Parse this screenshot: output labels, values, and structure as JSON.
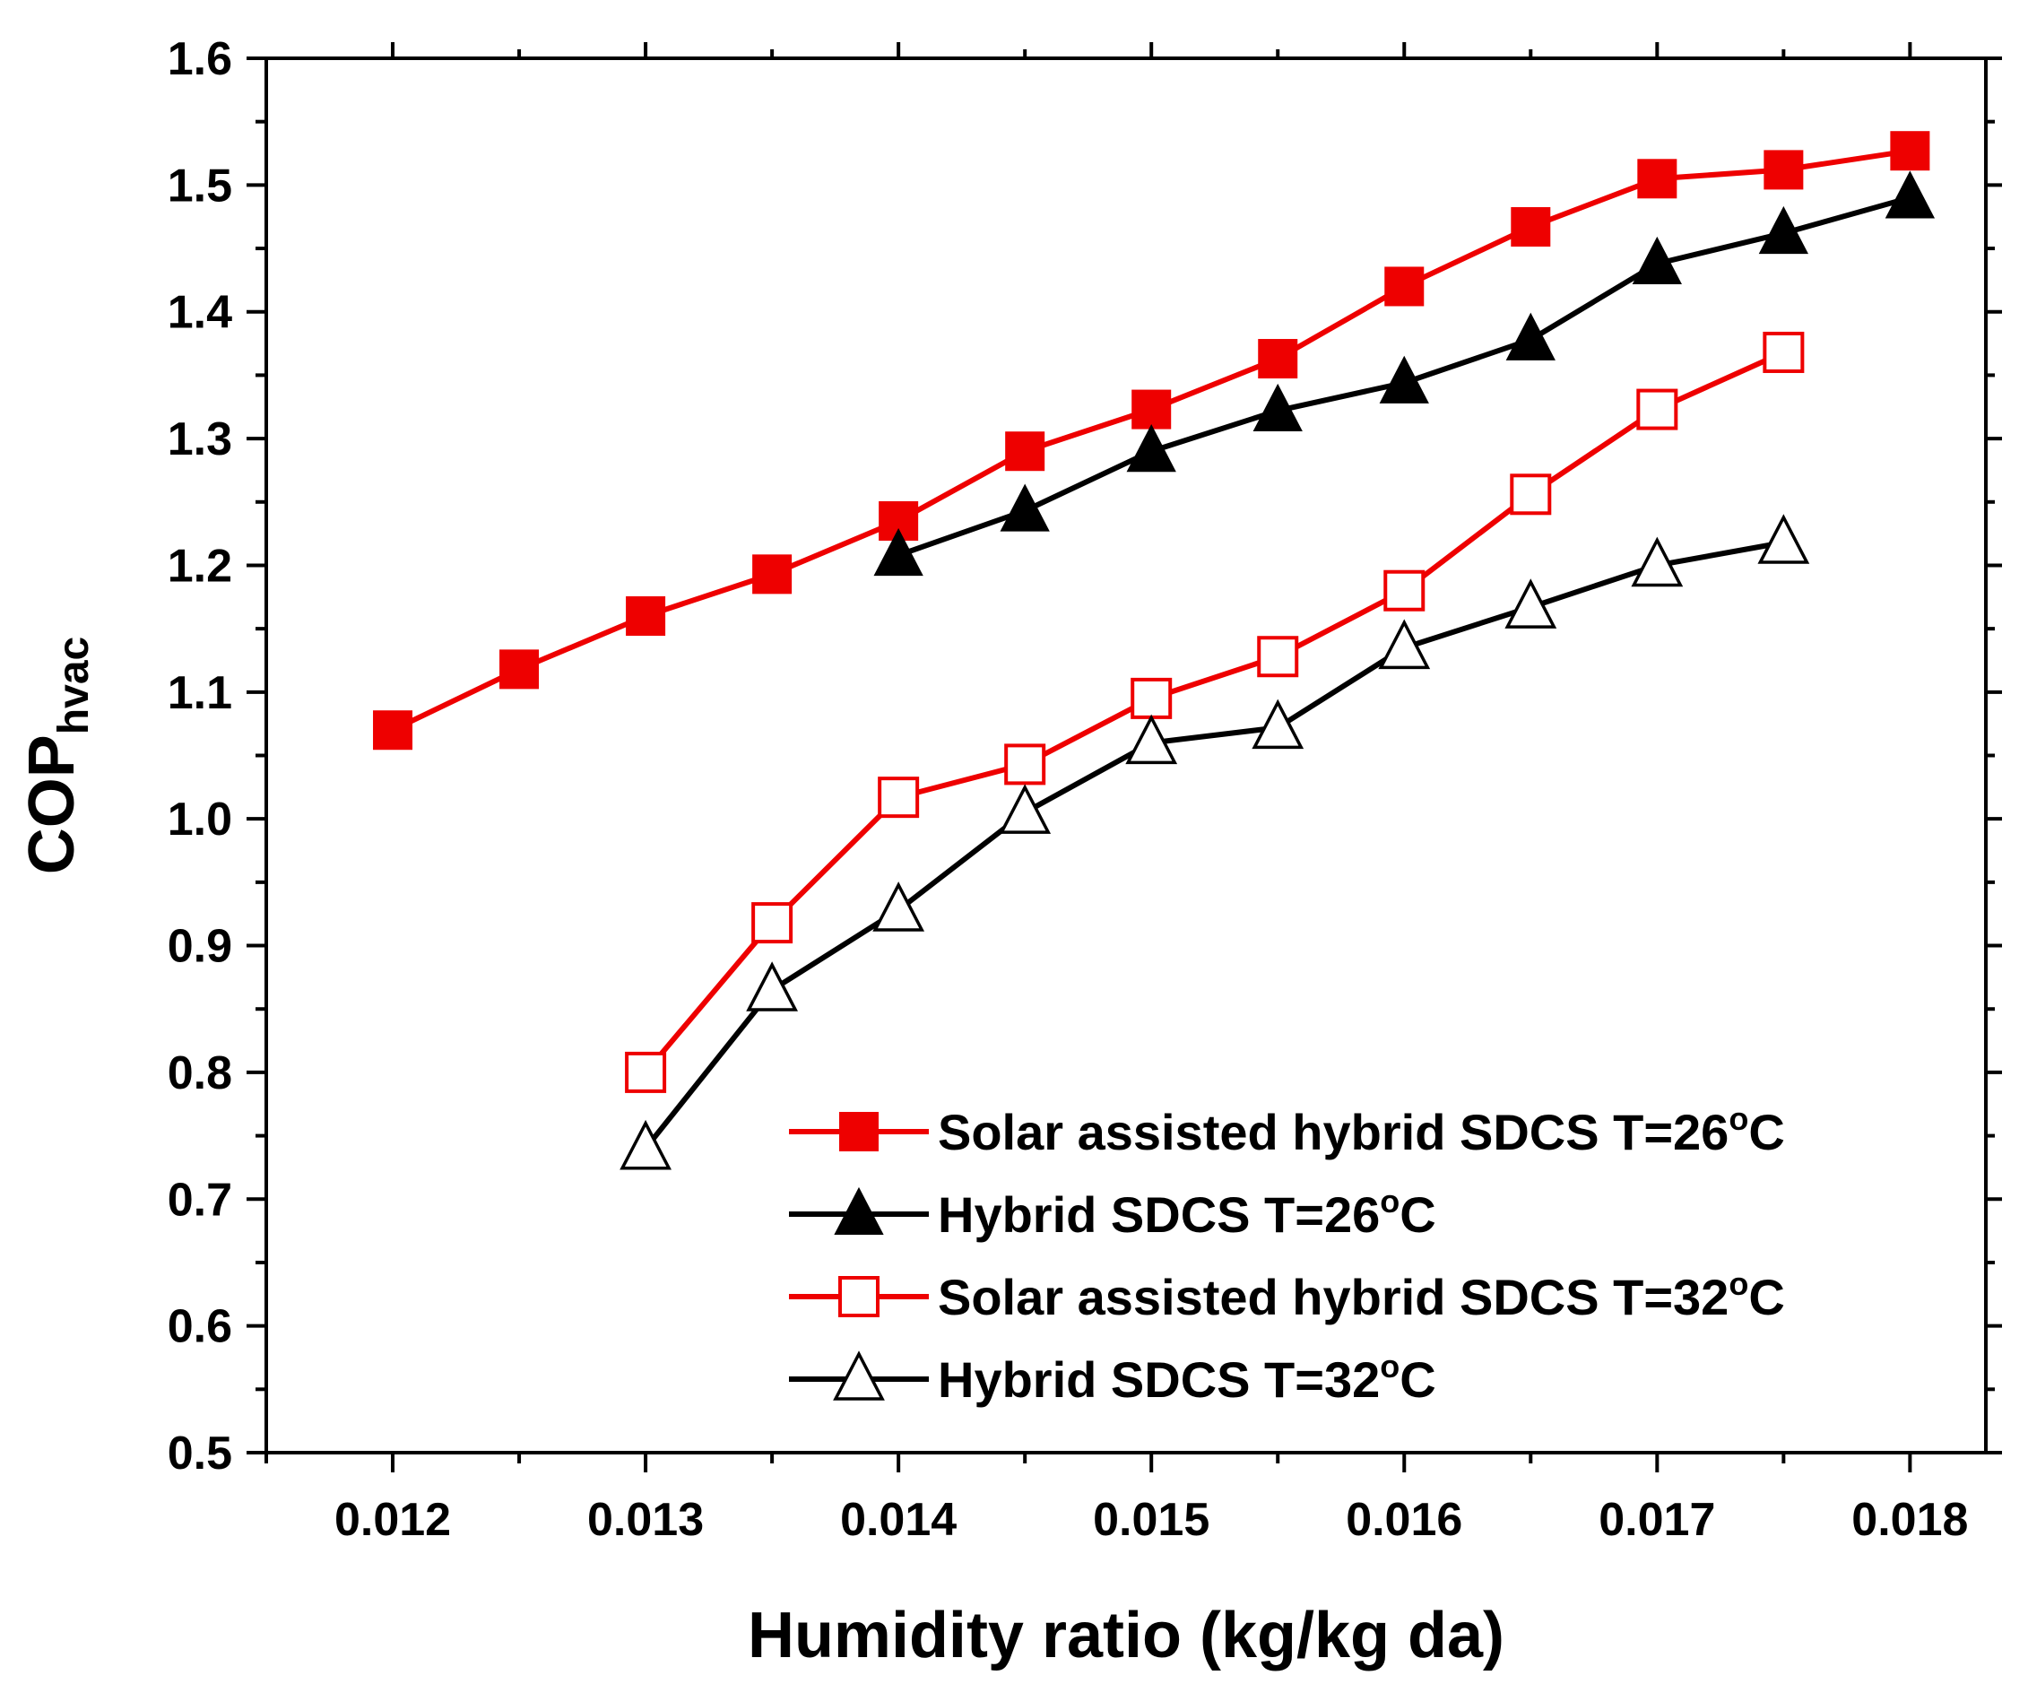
{
  "chart_data": {
    "type": "line",
    "title": "",
    "xlabel": "Humidity ratio (kg/kg da)",
    "ylabel_main": "COP",
    "ylabel_sub": "hvac",
    "xlim": [
      0.0115,
      0.0183
    ],
    "ylim": [
      0.5,
      1.6
    ],
    "x_ticks": [
      "0.012",
      "0.013",
      "0.014",
      "0.015",
      "0.016",
      "0.017",
      "0.018"
    ],
    "y_ticks": [
      "0.5",
      "0.6",
      "0.7",
      "0.8",
      "0.9",
      "1.0",
      "1.1",
      "1.2",
      "1.3",
      "1.4",
      "1.5",
      "1.6"
    ],
    "grid": false,
    "legend_position": "bottom-right",
    "series": [
      {
        "name": "Solar assisted hybrid SDCS T=26",
        "degree_suffix": "o",
        "unit": "C",
        "color": "#ee0000",
        "marker": "square-filled",
        "x": [
          0.012,
          0.0125,
          0.013,
          0.0135,
          0.014,
          0.0145,
          0.015,
          0.0155,
          0.016,
          0.0165,
          0.017,
          0.0175,
          0.018
        ],
        "y": [
          1.07,
          1.118,
          1.16,
          1.193,
          1.235,
          1.29,
          1.323,
          1.363,
          1.42,
          1.467,
          1.505,
          1.512,
          1.527
        ]
      },
      {
        "name": "Hybrid SDCS T=26",
        "degree_suffix": "o",
        "unit": "C",
        "color": "#000000",
        "marker": "triangle-filled",
        "x": [
          0.014,
          0.0145,
          0.015,
          0.0155,
          0.016,
          0.0165,
          0.017,
          0.0175,
          0.018
        ],
        "y": [
          1.208,
          1.243,
          1.29,
          1.322,
          1.344,
          1.378,
          1.438,
          1.462,
          1.49
        ]
      },
      {
        "name": "Solar assisted hybrid SDCS T=32",
        "degree_suffix": "o",
        "unit": "C",
        "color": "#ee0000",
        "marker": "square-open",
        "x": [
          0.013,
          0.0135,
          0.014,
          0.0145,
          0.015,
          0.0155,
          0.016,
          0.0165,
          0.017,
          0.0175
        ],
        "y": [
          0.8,
          0.918,
          1.017,
          1.043,
          1.095,
          1.128,
          1.18,
          1.256,
          1.323,
          1.368
        ]
      },
      {
        "name": "Hybrid SDCS T=32",
        "degree_suffix": "o",
        "unit": "C",
        "color": "#000000",
        "marker": "triangle-open",
        "x": [
          0.013,
          0.0135,
          0.014,
          0.0145,
          0.015,
          0.0155,
          0.016,
          0.0165,
          0.017,
          0.0175
        ],
        "y": [
          0.74,
          0.865,
          0.928,
          1.005,
          1.06,
          1.072,
          1.135,
          1.167,
          1.2,
          1.218
        ]
      }
    ]
  }
}
